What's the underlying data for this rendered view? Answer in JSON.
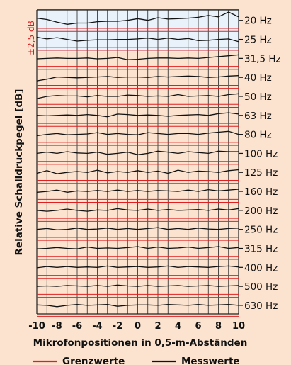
{
  "chart_data": {
    "type": "line",
    "xlabel": "Mikrofonpositionen in 0,5-m-Abständen",
    "ylabel": "Relative Schalldruckpegel [dB]",
    "tolerance_label": "±2,5 dB",
    "x_ticks": [
      "-10",
      "-8",
      "-6",
      "-4",
      "-2",
      "0",
      "2",
      "4",
      "6",
      "8",
      "10"
    ],
    "xlim": [
      -10,
      10
    ],
    "x": [
      -10,
      -9,
      -8,
      -7,
      -6,
      -5,
      -4,
      -3,
      -2,
      -1,
      0,
      1,
      2,
      3,
      4,
      5,
      6,
      7,
      8,
      9,
      10
    ],
    "legend": [
      {
        "label": "Grenzwerte",
        "color": "#e02020"
      },
      {
        "label": "Messwerte",
        "color": "#111111"
      }
    ],
    "colors": {
      "background": "#fbe3cf",
      "highlight": "#e9f2fb",
      "grid": "#222222",
      "limit": "#e02020",
      "measured": "#111111"
    },
    "series": [
      {
        "name": "20 Hz",
        "values": [
          0.5,
          0.2,
          -0.4,
          -0.9,
          -0.6,
          -0.6,
          -0.3,
          -0.2,
          -0.2,
          0.0,
          0.4,
          0.0,
          0.6,
          0.3,
          0.4,
          0.5,
          0.7,
          1.1,
          0.8,
          1.9,
          0.8
        ]
      },
      {
        "name": "25 Hz",
        "values": [
          0.5,
          0.1,
          0.4,
          0.0,
          -0.4,
          -0.2,
          -0.1,
          -0.1,
          0.0,
          0.0,
          0.1,
          0.3,
          0.0,
          0.3,
          0.0,
          0.2,
          -0.3,
          -0.2,
          0.0,
          0.1,
          -0.5
        ]
      },
      {
        "name": "31,5 Hz",
        "values": [
          -0.1,
          0.0,
          0.1,
          0.0,
          0.0,
          0.1,
          -0.1,
          0.0,
          0.2,
          -0.3,
          -0.2,
          0.0,
          0.1,
          0.1,
          0.0,
          0.1,
          0.0,
          0.2,
          0.4,
          0.6,
          0.8
        ]
      },
      {
        "name": "40 Hz",
        "values": [
          -0.8,
          -0.4,
          0.1,
          0.0,
          -0.1,
          0.0,
          0.1,
          0.2,
          0.0,
          0.1,
          0.1,
          0.0,
          0.2,
          0.1,
          0.2,
          0.3,
          0.2,
          0.0,
          0.1,
          0.3,
          0.4
        ]
      },
      {
        "name": "50 Hz",
        "values": [
          -0.5,
          0.0,
          0.2,
          0.1,
          0.1,
          -0.1,
          0.2,
          0.0,
          0.0,
          0.3,
          0.2,
          0.0,
          0.1,
          0.0,
          0.4,
          0.0,
          0.1,
          0.2,
          0.0,
          0.4,
          0.6
        ]
      },
      {
        "name": "63 Hz",
        "values": [
          0.0,
          -0.1,
          0.0,
          0.1,
          0.0,
          0.2,
          0.0,
          -0.3,
          0.3,
          0.2,
          0.0,
          0.1,
          0.0,
          -0.2,
          0.0,
          0.1,
          0.2,
          0.0,
          0.4,
          0.6,
          0.3
        ]
      },
      {
        "name": "80 Hz",
        "values": [
          -0.3,
          0.0,
          0.2,
          -0.1,
          0.0,
          0.1,
          0.4,
          0.0,
          0.2,
          0.0,
          -0.1,
          0.4,
          0.2,
          0.0,
          0.2,
          0.2,
          0.0,
          0.3,
          0.5,
          0.7,
          0.0
        ]
      },
      {
        "name": "100 Hz",
        "values": [
          0.0,
          0.3,
          0.0,
          0.4,
          0.1,
          0.0,
          0.3,
          -0.2,
          0.0,
          0.3,
          -0.3,
          0.0,
          0.5,
          0.3,
          0.0,
          0.4,
          0.2,
          0.0,
          0.5,
          0.4,
          0.4
        ]
      },
      {
        "name": "125 Hz",
        "values": [
          -0.2,
          0.4,
          -0.3,
          0.0,
          0.2,
          0.0,
          0.5,
          -0.1,
          0.2,
          0.0,
          0.4,
          0.0,
          0.3,
          -0.2,
          0.5,
          0.0,
          0.3,
          0.2,
          0.0,
          0.4,
          0.6
        ]
      },
      {
        "name": "160 Hz",
        "values": [
          -0.2,
          0.0,
          0.3,
          -0.2,
          0.1,
          0.0,
          0.2,
          0.0,
          0.3,
          0.0,
          0.2,
          0.0,
          0.2,
          0.1,
          0.0,
          0.3,
          0.0,
          0.4,
          0.1,
          0.3,
          0.5
        ]
      },
      {
        "name": "200 Hz",
        "values": [
          0.0,
          -0.2,
          0.0,
          0.3,
          0.0,
          -0.2,
          0.1,
          0.0,
          0.4,
          0.1,
          0.0,
          0.3,
          0.0,
          0.2,
          0.0,
          0.1,
          0.2,
          0.0,
          0.3,
          0.1,
          0.4
        ]
      },
      {
        "name": "250 Hz",
        "values": [
          0.0,
          0.2,
          -0.1,
          0.0,
          0.3,
          0.0,
          0.1,
          0.3,
          0.0,
          0.2,
          0.0,
          0.2,
          0.4,
          0.0,
          0.2,
          0.0,
          0.3,
          0.1,
          0.0,
          0.2,
          0.3
        ]
      },
      {
        "name": "315 Hz",
        "values": [
          -0.1,
          0.0,
          0.2,
          0.0,
          -0.1,
          0.3,
          0.0,
          0.1,
          0.0,
          0.2,
          0.4,
          0.0,
          0.3,
          0.0,
          0.1,
          0.3,
          0.0,
          0.2,
          0.4,
          0.0,
          0.2
        ]
      },
      {
        "name": "400 Hz",
        "values": [
          -0.1,
          0.2,
          0.0,
          0.2,
          0.0,
          0.1,
          0.0,
          0.3,
          0.0,
          0.1,
          0.2,
          0.0,
          0.1,
          0.3,
          0.0,
          0.2,
          0.1,
          0.0,
          0.2,
          0.3,
          0.1
        ]
      },
      {
        "name": "500 Hz",
        "values": [
          0.0,
          0.1,
          0.0,
          0.2,
          0.1,
          0.0,
          0.2,
          0.0,
          0.3,
          0.1,
          0.0,
          0.2,
          0.0,
          0.1,
          0.2,
          0.0,
          0.1,
          0.2,
          0.0,
          0.1,
          0.2
        ]
      },
      {
        "name": "630 Hz",
        "values": [
          0.1,
          0.0,
          -0.3,
          0.0,
          0.2,
          0.0,
          0.1,
          0.2,
          -0.2,
          0.0,
          0.1,
          0.1,
          0.0,
          0.2,
          0.1,
          0.0,
          0.2,
          0.0,
          0.1,
          0.2,
          0.0
        ]
      }
    ]
  }
}
